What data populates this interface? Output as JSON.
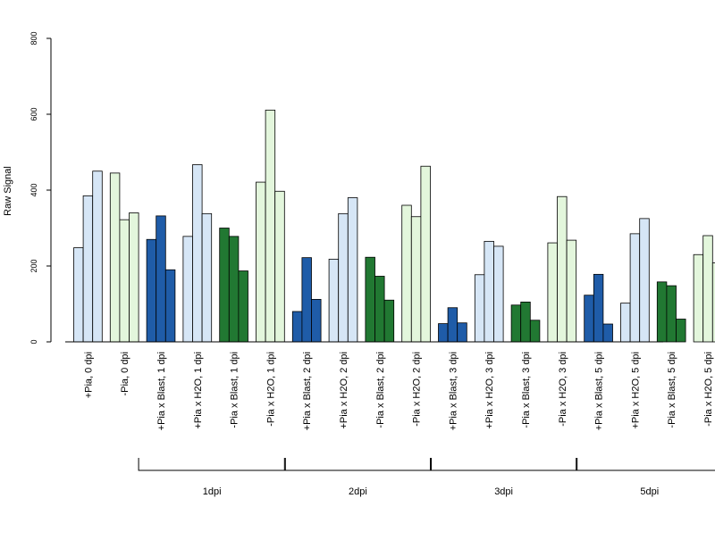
{
  "chart_data": {
    "type": "bar",
    "title": "",
    "xlabel": "",
    "ylabel": "Raw Signal",
    "ylim": [
      0,
      800
    ],
    "yticks": [
      "0",
      "200",
      "400",
      "600",
      "800"
    ],
    "grid": false,
    "legend": "none",
    "colors": {
      "blast_pia_plus": "#1f5ca8",
      "h2o_pia_plus": "#d6e6f6",
      "blast_pia_minus": "#217832",
      "h2o_pia_minus": "#e3f6dc",
      "outline": "#000000"
    },
    "categories": [
      {
        "label": "+Pia, 0 dpi",
        "color": "h2o_pia_plus",
        "values": [
          248,
          385,
          450
        ]
      },
      {
        "label": "-Pia, 0 dpi",
        "color": "h2o_pia_minus",
        "values": [
          445,
          322,
          340
        ]
      },
      {
        "label": "+Pia x Blast, 1 dpi",
        "color": "blast_pia_plus",
        "values": [
          270,
          332,
          190
        ]
      },
      {
        "label": "+Pia x H2O, 1 dpi",
        "color": "h2o_pia_plus",
        "values": [
          278,
          467,
          338
        ]
      },
      {
        "label": "-Pia x Blast, 1 dpi",
        "color": "blast_pia_minus",
        "values": [
          300,
          278,
          187
        ]
      },
      {
        "label": "-Pia x H2O, 1 dpi",
        "color": "h2o_pia_minus",
        "values": [
          421,
          611,
          397
        ]
      },
      {
        "label": "+Pia x Blast, 2 dpi",
        "color": "blast_pia_plus",
        "values": [
          80,
          222,
          112
        ]
      },
      {
        "label": "+Pia x H2O, 2 dpi",
        "color": "h2o_pia_plus",
        "values": [
          218,
          338,
          380
        ]
      },
      {
        "label": "-Pia x Blast, 2 dpi",
        "color": "blast_pia_minus",
        "values": [
          223,
          173,
          110
        ]
      },
      {
        "label": "-Pia x H2O, 2 dpi",
        "color": "h2o_pia_minus",
        "values": [
          360,
          330,
          463
        ]
      },
      {
        "label": "+Pia x Blast, 3 dpi",
        "color": "blast_pia_plus",
        "values": [
          48,
          90,
          50
        ]
      },
      {
        "label": "+Pia x H2O, 3 dpi",
        "color": "h2o_pia_plus",
        "values": [
          177,
          265,
          252
        ]
      },
      {
        "label": "-Pia x Blast, 3 dpi",
        "color": "blast_pia_minus",
        "values": [
          97,
          105,
          57
        ]
      },
      {
        "label": "-Pia x H2O, 3 dpi",
        "color": "h2o_pia_minus",
        "values": [
          261,
          383,
          268
        ]
      },
      {
        "label": "+Pia x Blast, 5 dpi",
        "color": "blast_pia_plus",
        "values": [
          123,
          178,
          47
        ]
      },
      {
        "label": "+Pia x H2O, 5 dpi",
        "color": "h2o_pia_plus",
        "values": [
          102,
          285,
          325
        ]
      },
      {
        "label": "-Pia x Blast, 5 dpi",
        "color": "blast_pia_minus",
        "values": [
          158,
          148,
          60
        ]
      },
      {
        "label": "-Pia x H2O, 5 dpi",
        "color": "h2o_pia_minus",
        "values": [
          230,
          280,
          208
        ]
      }
    ],
    "groups": [
      {
        "label": "1dpi",
        "from": 2,
        "to": 5
      },
      {
        "label": "2dpi",
        "from": 6,
        "to": 9
      },
      {
        "label": "3dpi",
        "from": 10,
        "to": 13
      },
      {
        "label": "5dpi",
        "from": 14,
        "to": 17
      }
    ]
  }
}
